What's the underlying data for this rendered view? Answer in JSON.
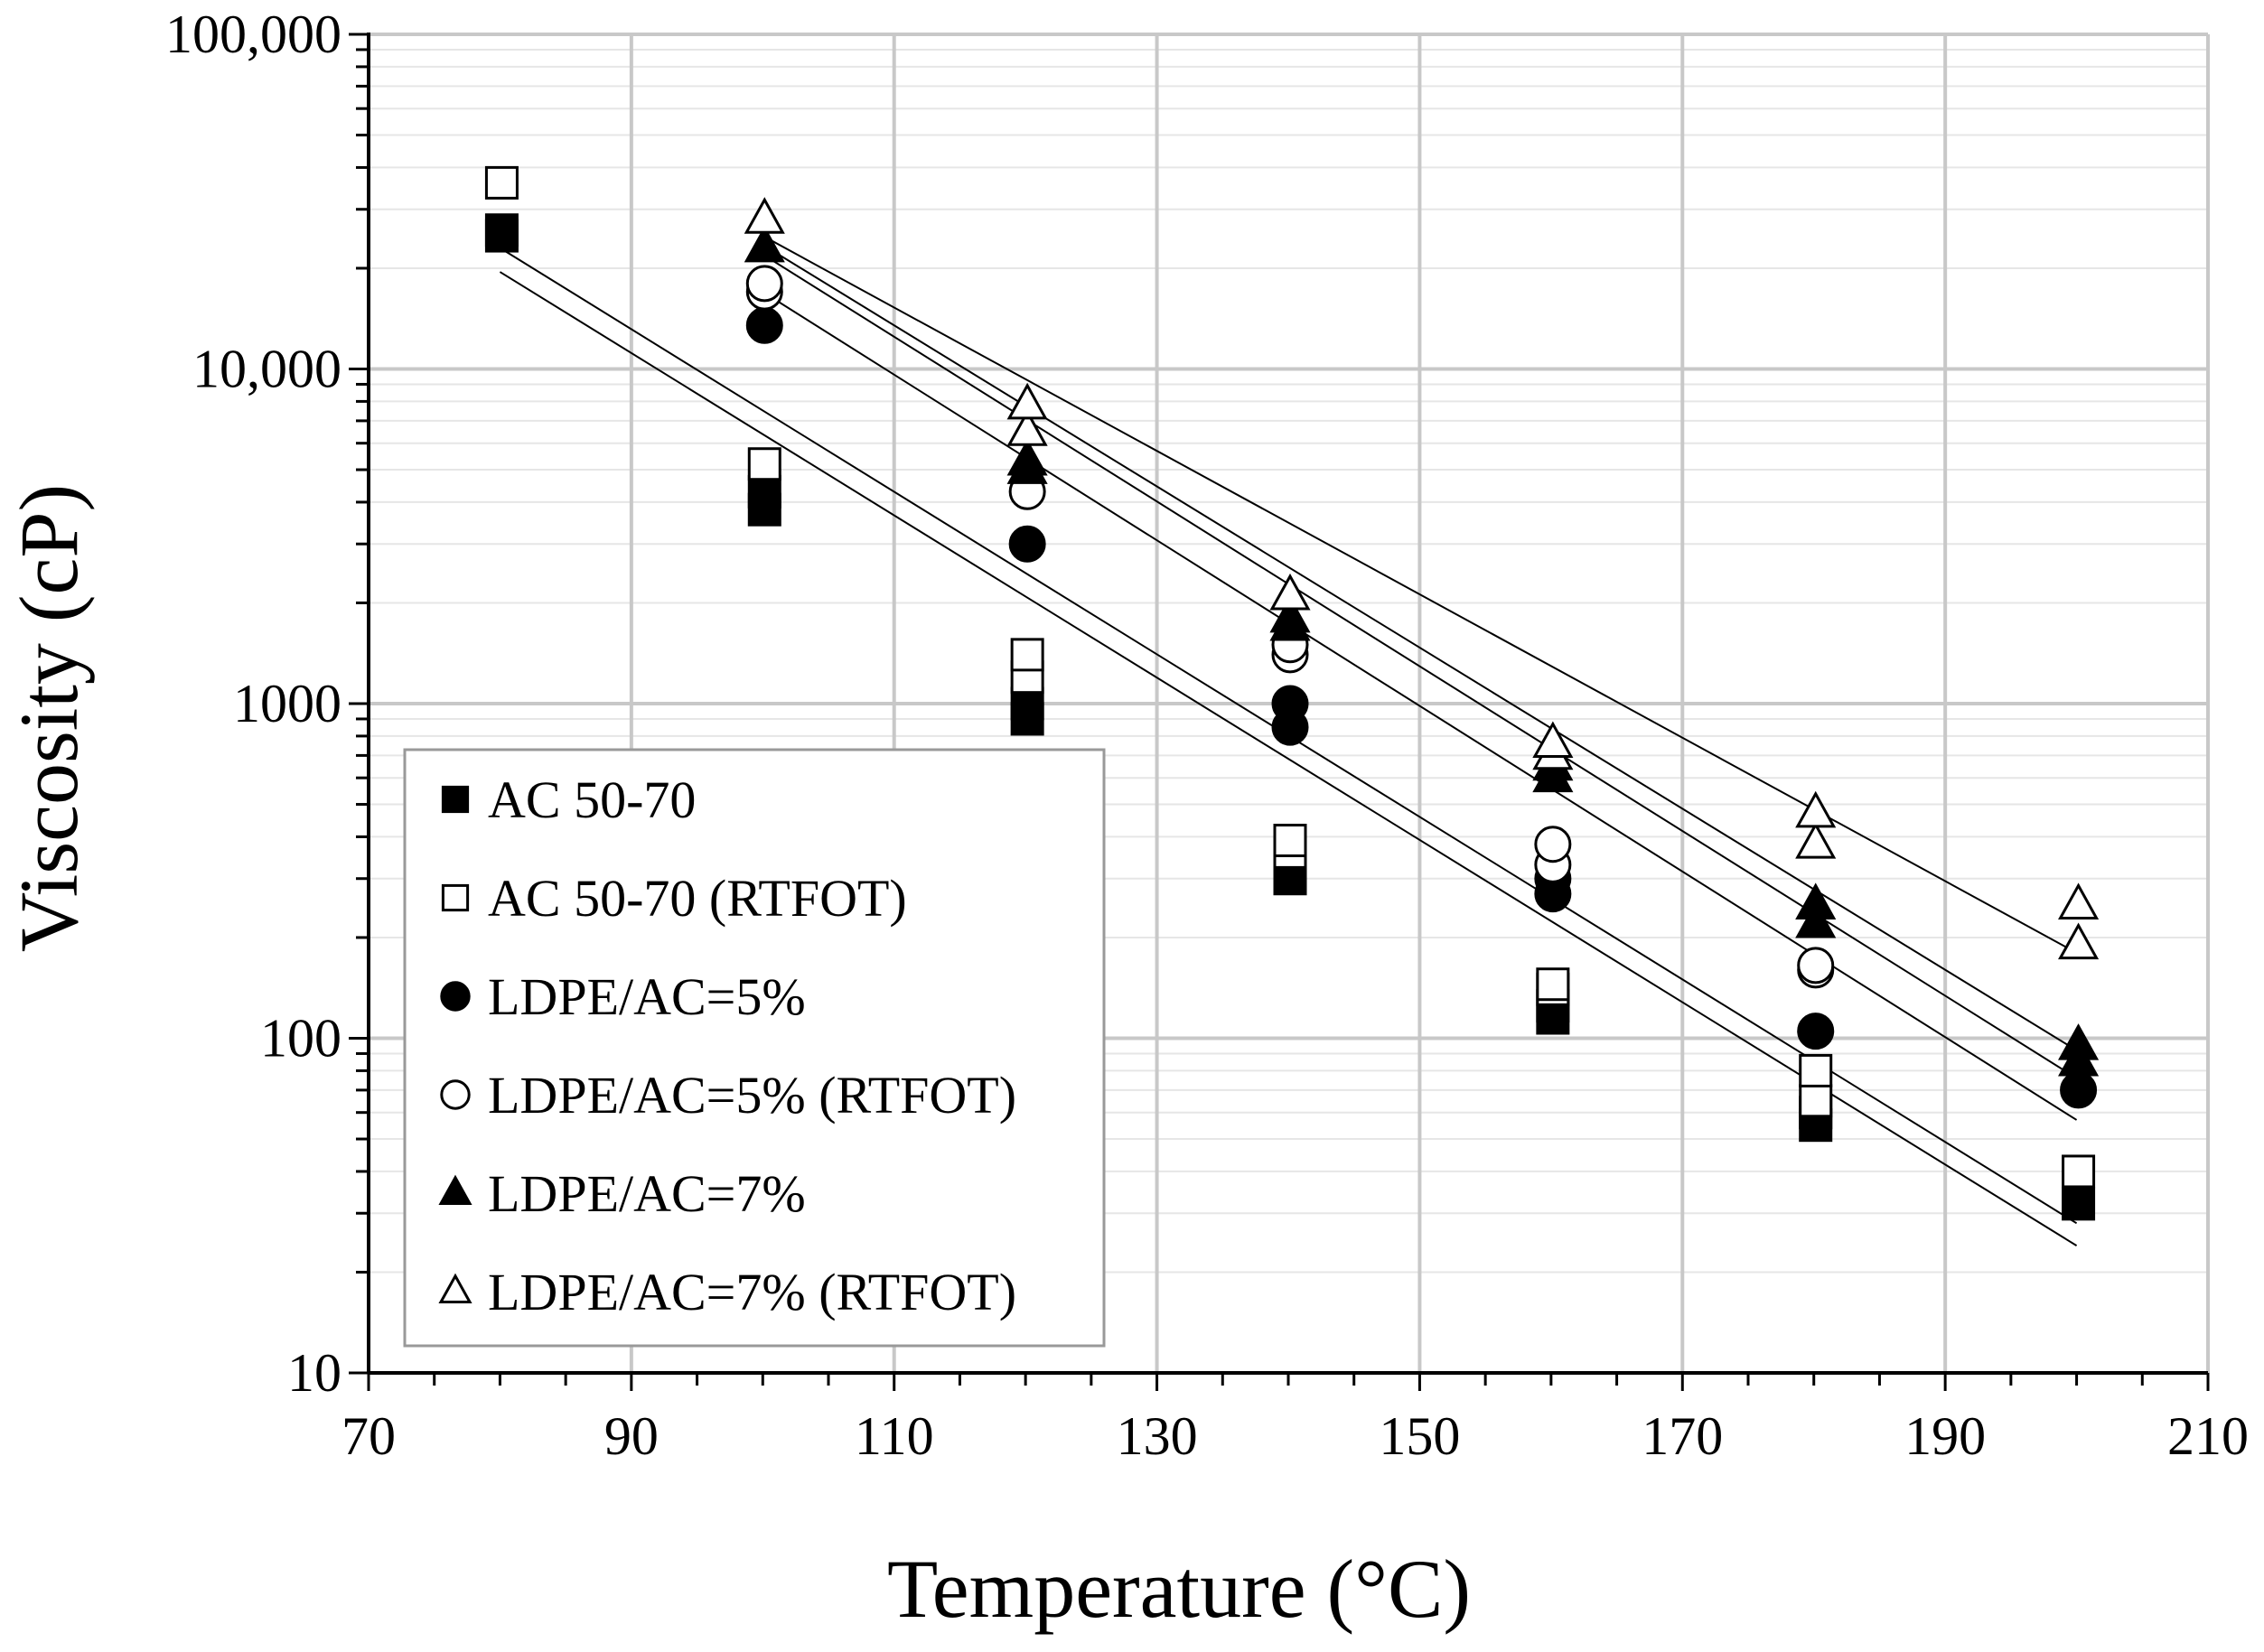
{
  "chart_data": {
    "type": "scatter",
    "title": "",
    "xlabel": "Temperature (°C)",
    "ylabel": "Viscosity (cP)",
    "xlim": [
      70,
      210
    ],
    "ylim": [
      10,
      100000
    ],
    "yscale": "log",
    "x_ticks": [
      70,
      90,
      110,
      130,
      150,
      170,
      190,
      210
    ],
    "y_ticks": [
      {
        "value": 10,
        "label": "10"
      },
      {
        "value": 100,
        "label": "100"
      },
      {
        "value": 1000,
        "label": "1000"
      },
      {
        "value": 10000,
        "label": "10,000"
      },
      {
        "value": 100000,
        "label": "100,000"
      }
    ],
    "grid": true,
    "legend_position": "bottom-left",
    "series": [
      {
        "name": "AC 50-70",
        "marker": "square-filled",
        "points": [
          [
            80,
            25000
          ],
          [
            80,
            26000
          ],
          [
            100,
            3800
          ],
          [
            100,
            4300
          ],
          [
            120,
            900
          ],
          [
            120,
            1000
          ],
          [
            140,
            300
          ],
          [
            140,
            330
          ],
          [
            160,
            115
          ],
          [
            160,
            125
          ],
          [
            180,
            55
          ],
          [
            180,
            60
          ],
          [
            200,
            32
          ]
        ],
        "fit": {
          "x_start": 80,
          "x_end": 200,
          "y_start": 19500,
          "y_end": 24
        }
      },
      {
        "name": "AC 50-70 (RTFOT)",
        "marker": "square-open",
        "points": [
          [
            80,
            36000
          ],
          [
            100,
            5200
          ],
          [
            120,
            1200
          ],
          [
            120,
            1400
          ],
          [
            140,
            360
          ],
          [
            140,
            390
          ],
          [
            160,
            140
          ],
          [
            160,
            145
          ],
          [
            180,
            65
          ],
          [
            180,
            80
          ],
          [
            200,
            40
          ]
        ],
        "fit": {
          "x_start": 80,
          "x_end": 200,
          "y_start": 23000,
          "y_end": 28
        }
      },
      {
        "name": "LDPE/AC=5%",
        "marker": "circle-filled",
        "points": [
          [
            100,
            13500
          ],
          [
            120,
            3000
          ],
          [
            140,
            1000
          ],
          [
            140,
            850
          ],
          [
            160,
            300
          ],
          [
            160,
            270
          ],
          [
            180,
            105
          ],
          [
            200,
            70
          ]
        ],
        "fit": {
          "x_start": 100,
          "x_end": 200,
          "y_start": 17000,
          "y_end": 57
        }
      },
      {
        "name": "LDPE/AC=5% (RTFOT)",
        "marker": "circle-open",
        "points": [
          [
            100,
            17000
          ],
          [
            100,
            18000
          ],
          [
            120,
            4300
          ],
          [
            140,
            1400
          ],
          [
            140,
            1500
          ],
          [
            160,
            330
          ],
          [
            160,
            380
          ],
          [
            180,
            160
          ],
          [
            180,
            165
          ]
        ],
        "fit": {
          "x_start": 100,
          "x_end": 200,
          "y_start": 22000,
          "y_end": 76
        }
      },
      {
        "name": "LDPE/AC=7%",
        "marker": "triangle-filled",
        "points": [
          [
            100,
            23000
          ],
          [
            120,
            5000
          ],
          [
            120,
            5300
          ],
          [
            140,
            1700
          ],
          [
            140,
            1800
          ],
          [
            160,
            600
          ],
          [
            160,
            650
          ],
          [
            180,
            220
          ],
          [
            180,
            250
          ],
          [
            200,
            85
          ],
          [
            200,
            95
          ]
        ],
        "fit": {
          "x_start": 100,
          "x_end": 200,
          "y_start": 23500,
          "y_end": 92
        }
      },
      {
        "name": "LDPE/AC=7% (RTFOT)",
        "marker": "triangle-open",
        "points": [
          [
            100,
            28000
          ],
          [
            120,
            6500
          ],
          [
            120,
            7800
          ],
          [
            140,
            2100
          ],
          [
            160,
            700
          ],
          [
            160,
            760
          ],
          [
            180,
            380
          ],
          [
            180,
            470
          ],
          [
            200,
            190
          ],
          [
            200,
            250
          ]
        ],
        "fit": {
          "x_start": 100,
          "x_end": 200,
          "y_start": 25000,
          "y_end": 180
        }
      }
    ]
  }
}
